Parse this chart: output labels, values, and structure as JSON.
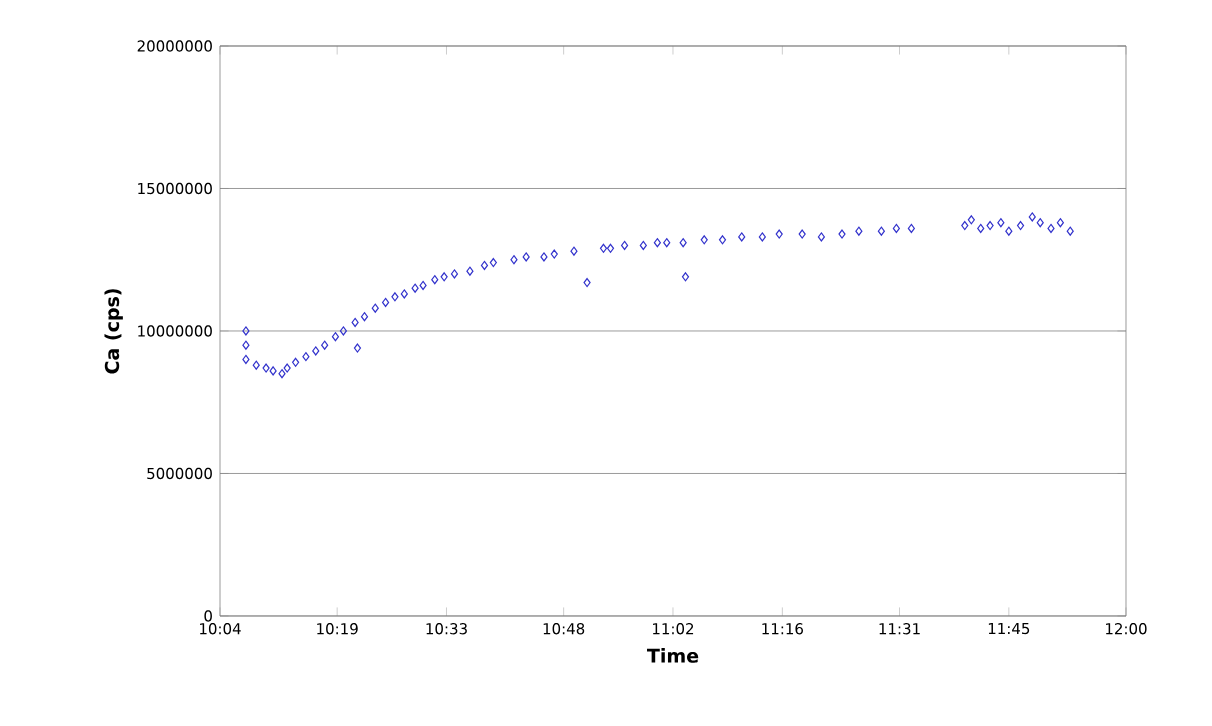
{
  "chart_data": {
    "type": "scatter",
    "xlabel": "Time",
    "ylabel": "Ca (cps)",
    "x": [
      10.122,
      10.122,
      10.122,
      10.144,
      10.165,
      10.18,
      10.199,
      10.21,
      10.228,
      10.25,
      10.271,
      10.29,
      10.313,
      10.33,
      10.355,
      10.36,
      10.375,
      10.398,
      10.42,
      10.44,
      10.46,
      10.483,
      10.5,
      10.525,
      10.545,
      10.567,
      10.6,
      10.631,
      10.65,
      10.694,
      10.72,
      10.758,
      10.78,
      10.822,
      10.85,
      10.885,
      10.9,
      10.93,
      10.97,
      11.0,
      11.02,
      11.055,
      11.06,
      11.1,
      11.139,
      11.18,
      11.224,
      11.26,
      11.309,
      11.35,
      11.394,
      11.43,
      11.478,
      11.51,
      11.542,
      11.656,
      11.67,
      11.69,
      11.71,
      11.733,
      11.75,
      11.775,
      11.8,
      11.817,
      11.84,
      11.86,
      11.881
    ],
    "values": [
      10000000,
      9500000,
      9000000,
      8800000,
      8700000,
      8600000,
      8500000,
      8700000,
      8900000,
      9100000,
      9300000,
      9500000,
      9800000,
      10000000,
      10300000,
      9400000,
      10500000,
      10800000,
      11000000,
      11200000,
      11300000,
      11500000,
      11600000,
      11800000,
      11900000,
      12000000,
      12100000,
      12300000,
      12400000,
      12500000,
      12600000,
      12600000,
      12700000,
      12800000,
      11700000,
      12900000,
      12900000,
      13000000,
      13000000,
      13100000,
      13100000,
      13100000,
      11900000,
      13200000,
      13200000,
      13300000,
      13300000,
      13400000,
      13400000,
      13300000,
      13400000,
      13500000,
      13500000,
      13600000,
      13600000,
      13700000,
      13900000,
      13600000,
      13700000,
      13800000,
      13500000,
      13700000,
      14000000,
      13800000,
      13600000,
      13800000,
      13500000
    ],
    "color": "#3333cc",
    "marker": "diamond",
    "grid": "y",
    "xlim": [
      10.0667,
      12.0
    ],
    "xticks": [
      {
        "value": 10.0667,
        "label": "10:04"
      },
      {
        "value": 10.3167,
        "label": "10:19"
      },
      {
        "value": 10.55,
        "label": "10:33"
      },
      {
        "value": 10.8,
        "label": "10:48"
      },
      {
        "value": 11.0333,
        "label": "11:02"
      },
      {
        "value": 11.2667,
        "label": "11:16"
      },
      {
        "value": 11.5167,
        "label": "11:31"
      },
      {
        "value": 11.75,
        "label": "11:45"
      },
      {
        "value": 12.0,
        "label": "12:00"
      }
    ],
    "ylim": [
      0,
      20000000
    ],
    "yticks": [
      0,
      5000000,
      10000000,
      15000000,
      20000000
    ]
  }
}
